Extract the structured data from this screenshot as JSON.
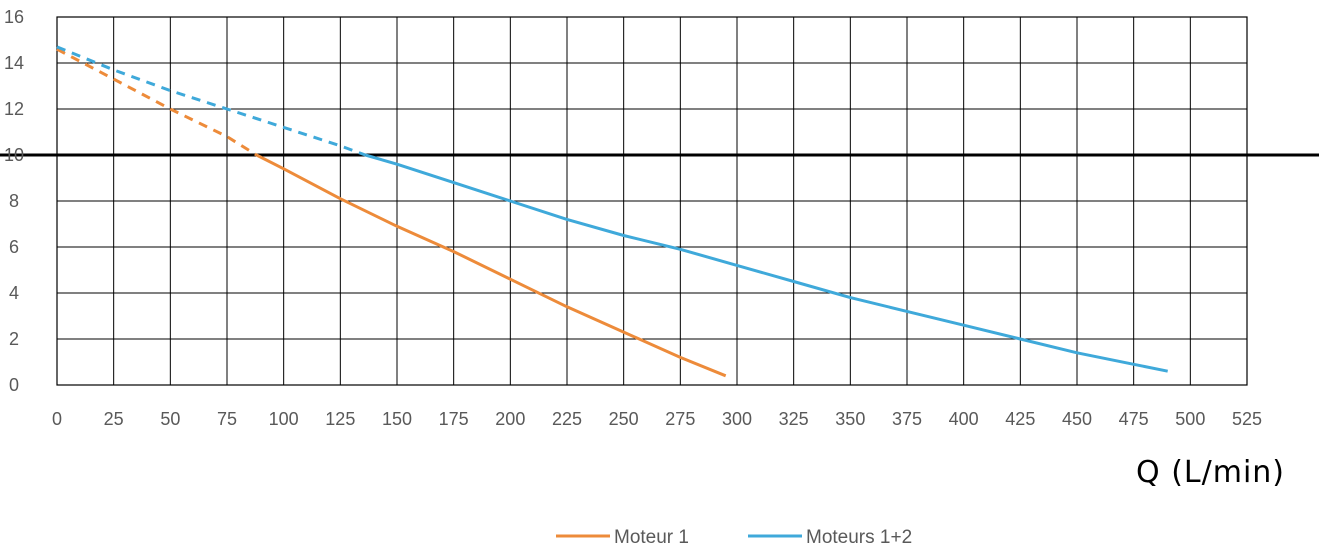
{
  "chart_data": {
    "type": "line",
    "xlabel": "Q (L/min)",
    "ylabel": "",
    "xlim": [
      0,
      525
    ],
    "ylim": [
      0,
      16
    ],
    "x_ticks": [
      "0",
      "25",
      "50",
      "75",
      "100",
      "125",
      "150",
      "175",
      "200",
      "225",
      "250",
      "275",
      "300",
      "325",
      "350",
      "375",
      "400",
      "425",
      "450",
      "475",
      "500",
      "525"
    ],
    "y_ticks": [
      "0",
      "2",
      "4",
      "6",
      "8",
      "10",
      "12",
      "14",
      "16"
    ],
    "grid": true,
    "legend_position": "bottom-center",
    "reference_line": {
      "y": 10,
      "color": "#000000"
    },
    "series": [
      {
        "name": "Moteur 1",
        "color": "#ED8B3A",
        "dashed_points": [
          [
            0,
            14.6
          ],
          [
            25,
            13.3
          ],
          [
            50,
            12.0
          ],
          [
            75,
            10.8
          ],
          [
            88,
            10.0
          ]
        ],
        "solid_points": [
          [
            88,
            10.0
          ],
          [
            100,
            9.4
          ],
          [
            125,
            8.1
          ],
          [
            150,
            6.9
          ],
          [
            175,
            5.8
          ],
          [
            200,
            4.6
          ],
          [
            225,
            3.4
          ],
          [
            250,
            2.3
          ],
          [
            275,
            1.2
          ],
          [
            295,
            0.4
          ]
        ]
      },
      {
        "name": "Moteurs 1+2",
        "color": "#3FA9DA",
        "dashed_points": [
          [
            0,
            14.7
          ],
          [
            25,
            13.7
          ],
          [
            50,
            12.8
          ],
          [
            75,
            12.0
          ],
          [
            100,
            11.2
          ],
          [
            125,
            10.4
          ],
          [
            136,
            10.0
          ]
        ],
        "solid_points": [
          [
            136,
            10.0
          ],
          [
            150,
            9.6
          ],
          [
            175,
            8.8
          ],
          [
            200,
            8.0
          ],
          [
            225,
            7.2
          ],
          [
            250,
            6.5
          ],
          [
            275,
            5.9
          ],
          [
            300,
            5.2
          ],
          [
            325,
            4.5
          ],
          [
            350,
            3.8
          ],
          [
            375,
            3.2
          ],
          [
            400,
            2.6
          ],
          [
            425,
            2.0
          ],
          [
            450,
            1.4
          ],
          [
            475,
            0.9
          ],
          [
            490,
            0.6
          ]
        ]
      }
    ]
  }
}
